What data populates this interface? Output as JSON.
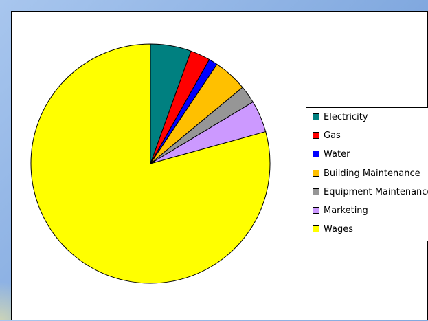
{
  "chart_data": {
    "type": "pie",
    "title": "",
    "legend_position": "right",
    "start_angle_deg": 0,
    "direction": "clockwise",
    "slices": [
      {
        "label": "Electricity",
        "value": 5.5,
        "color": "#008080"
      },
      {
        "label": "Gas",
        "value": 2.7,
        "color": "#ff0000"
      },
      {
        "label": "Water",
        "value": 1.2,
        "color": "#0000ff"
      },
      {
        "label": "Building Maintenance",
        "value": 4.6,
        "color": "#ffc000"
      },
      {
        "label": "Equipment Maintenance",
        "value": 2.4,
        "color": "#969696"
      },
      {
        "label": "Marketing",
        "value": 4.3,
        "color": "#cc99ff"
      },
      {
        "label": "Wages",
        "value": 79.3,
        "color": "#ffff00"
      }
    ]
  }
}
